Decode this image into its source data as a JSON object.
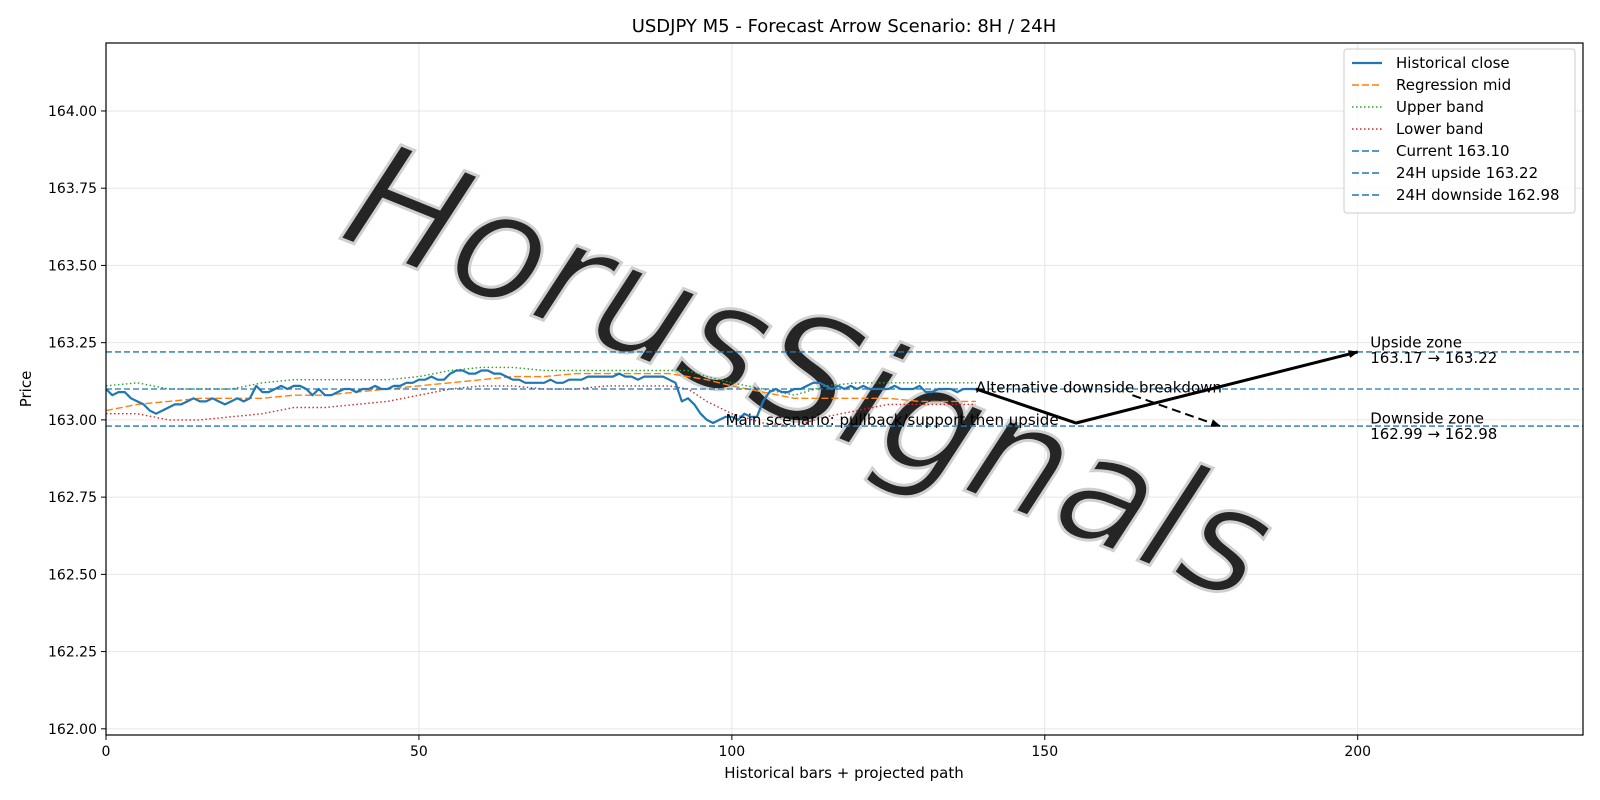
{
  "chart_data": {
    "type": "line",
    "title": "USDJPY M5 - Forecast Arrow Scenario: 8H / 24H",
    "xlabel": "Historical bars + projected path",
    "ylabel": "Price",
    "xlim": [
      0,
      236
    ],
    "ylim": [
      161.98,
      164.22
    ],
    "x_ticks": [
      0,
      50,
      100,
      150,
      200
    ],
    "x_tick_labels": [
      "0",
      "50",
      "100",
      "150",
      "200"
    ],
    "y_ticks": [
      162.0,
      162.25,
      162.5,
      162.75,
      163.0,
      163.25,
      163.5,
      163.75,
      164.0
    ],
    "y_tick_labels": [
      "162.00",
      "162.25",
      "162.50",
      "162.75",
      "163.00",
      "163.25",
      "163.50",
      "163.75",
      "164.00"
    ],
    "grid": true,
    "legend_position": "top-right",
    "series": [
      {
        "name": "Historical close",
        "color": "#1f77b4",
        "style": "solid",
        "x": [
          0,
          1,
          2,
          3,
          4,
          5,
          6,
          7,
          8,
          9,
          10,
          11,
          12,
          13,
          14,
          15,
          16,
          17,
          18,
          19,
          20,
          21,
          22,
          23,
          24,
          25,
          26,
          27,
          28,
          29,
          30,
          31,
          32,
          33,
          34,
          35,
          36,
          37,
          38,
          39,
          40,
          41,
          42,
          43,
          44,
          45,
          46,
          47,
          48,
          49,
          50,
          51,
          52,
          53,
          54,
          55,
          56,
          57,
          58,
          59,
          60,
          61,
          62,
          63,
          64,
          65,
          66,
          67,
          68,
          69,
          70,
          71,
          72,
          73,
          74,
          75,
          76,
          77,
          78,
          79,
          80,
          81,
          82,
          83,
          84,
          85,
          86,
          87,
          88,
          89,
          90,
          91,
          92,
          93,
          94,
          95,
          96,
          97,
          98,
          99,
          100,
          101,
          102,
          103,
          104,
          105,
          106,
          107,
          108,
          109,
          110,
          111,
          112,
          113,
          114,
          115,
          116,
          117,
          118,
          119,
          120,
          121,
          122,
          123,
          124,
          125,
          126,
          127,
          128,
          129,
          130,
          131,
          132,
          133,
          134,
          135,
          136,
          137,
          138,
          139
        ],
        "values": [
          163.1,
          163.08,
          163.09,
          163.09,
          163.07,
          163.06,
          163.05,
          163.03,
          163.02,
          163.03,
          163.04,
          163.05,
          163.05,
          163.06,
          163.07,
          163.06,
          163.06,
          163.07,
          163.06,
          163.05,
          163.06,
          163.07,
          163.06,
          163.07,
          163.11,
          163.09,
          163.09,
          163.1,
          163.11,
          163.1,
          163.11,
          163.11,
          163.1,
          163.08,
          163.1,
          163.08,
          163.08,
          163.09,
          163.1,
          163.1,
          163.09,
          163.1,
          163.1,
          163.11,
          163.1,
          163.1,
          163.11,
          163.11,
          163.12,
          163.12,
          163.13,
          163.13,
          163.14,
          163.13,
          163.13,
          163.15,
          163.16,
          163.16,
          163.15,
          163.15,
          163.16,
          163.16,
          163.15,
          163.15,
          163.14,
          163.13,
          163.13,
          163.12,
          163.12,
          163.12,
          163.12,
          163.13,
          163.12,
          163.12,
          163.13,
          163.13,
          163.13,
          163.14,
          163.14,
          163.14,
          163.14,
          163.14,
          163.15,
          163.14,
          163.14,
          163.13,
          163.14,
          163.14,
          163.14,
          163.14,
          163.13,
          163.12,
          163.06,
          163.07,
          163.05,
          163.02,
          163.0,
          162.99,
          163.0,
          163.01,
          163.01,
          163.0,
          163.02,
          163.01,
          163.01,
          163.06,
          163.09,
          163.1,
          163.09,
          163.09,
          163.1,
          163.1,
          163.11,
          163.12,
          163.12,
          163.11,
          163.1,
          163.11,
          163.1,
          163.11,
          163.1,
          163.11,
          163.1,
          163.1,
          163.1,
          163.1,
          163.11,
          163.1,
          163.1,
          163.1,
          163.11,
          163.09,
          163.09,
          163.1,
          163.1,
          163.1,
          163.09,
          163.1,
          163.1,
          163.1
        ]
      },
      {
        "name": "Regression mid",
        "color": "#ff7f0e",
        "style": "dashed",
        "x": [
          0,
          5,
          10,
          15,
          20,
          25,
          30,
          35,
          40,
          45,
          50,
          55,
          60,
          65,
          70,
          75,
          80,
          85,
          90,
          93,
          96,
          100,
          105,
          110,
          115,
          120,
          125,
          130,
          135,
          139
        ],
        "values": [
          163.03,
          163.05,
          163.06,
          163.07,
          163.07,
          163.07,
          163.08,
          163.08,
          163.09,
          163.1,
          163.11,
          163.12,
          163.13,
          163.14,
          163.14,
          163.15,
          163.15,
          163.15,
          163.15,
          163.14,
          163.13,
          163.11,
          163.09,
          163.07,
          163.07,
          163.07,
          163.07,
          163.06,
          163.06,
          163.06
        ]
      },
      {
        "name": "Upper band",
        "color": "#2ca02c",
        "style": "dotted",
        "x": [
          0,
          5,
          10,
          15,
          20,
          25,
          30,
          35,
          40,
          45,
          50,
          55,
          60,
          65,
          70,
          75,
          80,
          85,
          90,
          93,
          96,
          100,
          105,
          110,
          115,
          120,
          125,
          130,
          135,
          139
        ],
        "values": [
          163.11,
          163.12,
          163.1,
          163.1,
          163.1,
          163.12,
          163.13,
          163.13,
          163.13,
          163.13,
          163.14,
          163.16,
          163.17,
          163.17,
          163.16,
          163.16,
          163.16,
          163.16,
          163.16,
          163.16,
          163.14,
          163.12,
          163.1,
          163.08,
          163.11,
          163.12,
          163.12,
          163.12,
          163.12,
          163.12
        ]
      },
      {
        "name": "Lower band",
        "color": "#d62728",
        "style": "dotted",
        "x": [
          0,
          5,
          10,
          15,
          20,
          25,
          30,
          35,
          40,
          45,
          50,
          55,
          60,
          65,
          70,
          75,
          80,
          85,
          90,
          93,
          96,
          100,
          105,
          110,
          115,
          120,
          125,
          130,
          135,
          139
        ],
        "values": [
          163.02,
          163.02,
          163.0,
          163.0,
          163.01,
          163.02,
          163.04,
          163.04,
          163.05,
          163.06,
          163.08,
          163.1,
          163.11,
          163.11,
          163.1,
          163.1,
          163.11,
          163.11,
          163.11,
          163.1,
          163.06,
          163.02,
          162.99,
          162.98,
          163.01,
          163.03,
          163.05,
          163.05,
          163.05,
          163.05
        ]
      }
    ],
    "hlines": [
      {
        "name": "Current 163.10",
        "value": 163.1,
        "color": "#1f77b4",
        "style": "dashed"
      },
      {
        "name": "24H upside 163.22",
        "value": 163.22,
        "color": "#1f77b4",
        "style": "dashed"
      },
      {
        "name": "24H downside 162.98",
        "value": 162.98,
        "color": "#1f77b4",
        "style": "dashed"
      }
    ],
    "arrows": [
      {
        "kind": "main",
        "style": "solid",
        "points": [
          [
            139,
            163.1
          ],
          [
            155,
            162.99
          ],
          [
            200,
            163.22
          ]
        ]
      },
      {
        "kind": "alternative",
        "style": "dashed",
        "points": [
          [
            164,
            163.08
          ],
          [
            178,
            162.98
          ]
        ]
      }
    ],
    "annotations": [
      {
        "text": "Alternative downside breakdown",
        "x": 139,
        "y": 163.105,
        "anchor": "start"
      },
      {
        "text": "Main scenario: pullback/support then upside",
        "x": 99,
        "y": 163.0,
        "anchor": "start"
      },
      {
        "text": "Upside zone",
        "x": 202,
        "y": 163.25,
        "anchor": "start"
      },
      {
        "text": "163.17 → 163.22",
        "x": 202,
        "y": 163.2,
        "anchor": "start"
      },
      {
        "text": "Downside zone",
        "x": 202,
        "y": 163.005,
        "anchor": "start"
      },
      {
        "text": "162.99 → 162.98",
        "x": 202,
        "y": 162.955,
        "anchor": "start"
      }
    ],
    "watermark": "HorusSignals",
    "legend": [
      {
        "label": "Historical close",
        "color": "#1f77b4",
        "style": "solid"
      },
      {
        "label": "Regression mid",
        "color": "#ff7f0e",
        "style": "dashed"
      },
      {
        "label": "Upper band",
        "color": "#2ca02c",
        "style": "dotted"
      },
      {
        "label": "Lower band",
        "color": "#d62728",
        "style": "dotted"
      },
      {
        "label": "Current 163.10",
        "color": "#1f77b4",
        "style": "dashed"
      },
      {
        "label": "24H upside 163.22",
        "color": "#1f77b4",
        "style": "dashed"
      },
      {
        "label": "24H downside 162.98",
        "color": "#1f77b4",
        "style": "dashed"
      }
    ]
  }
}
